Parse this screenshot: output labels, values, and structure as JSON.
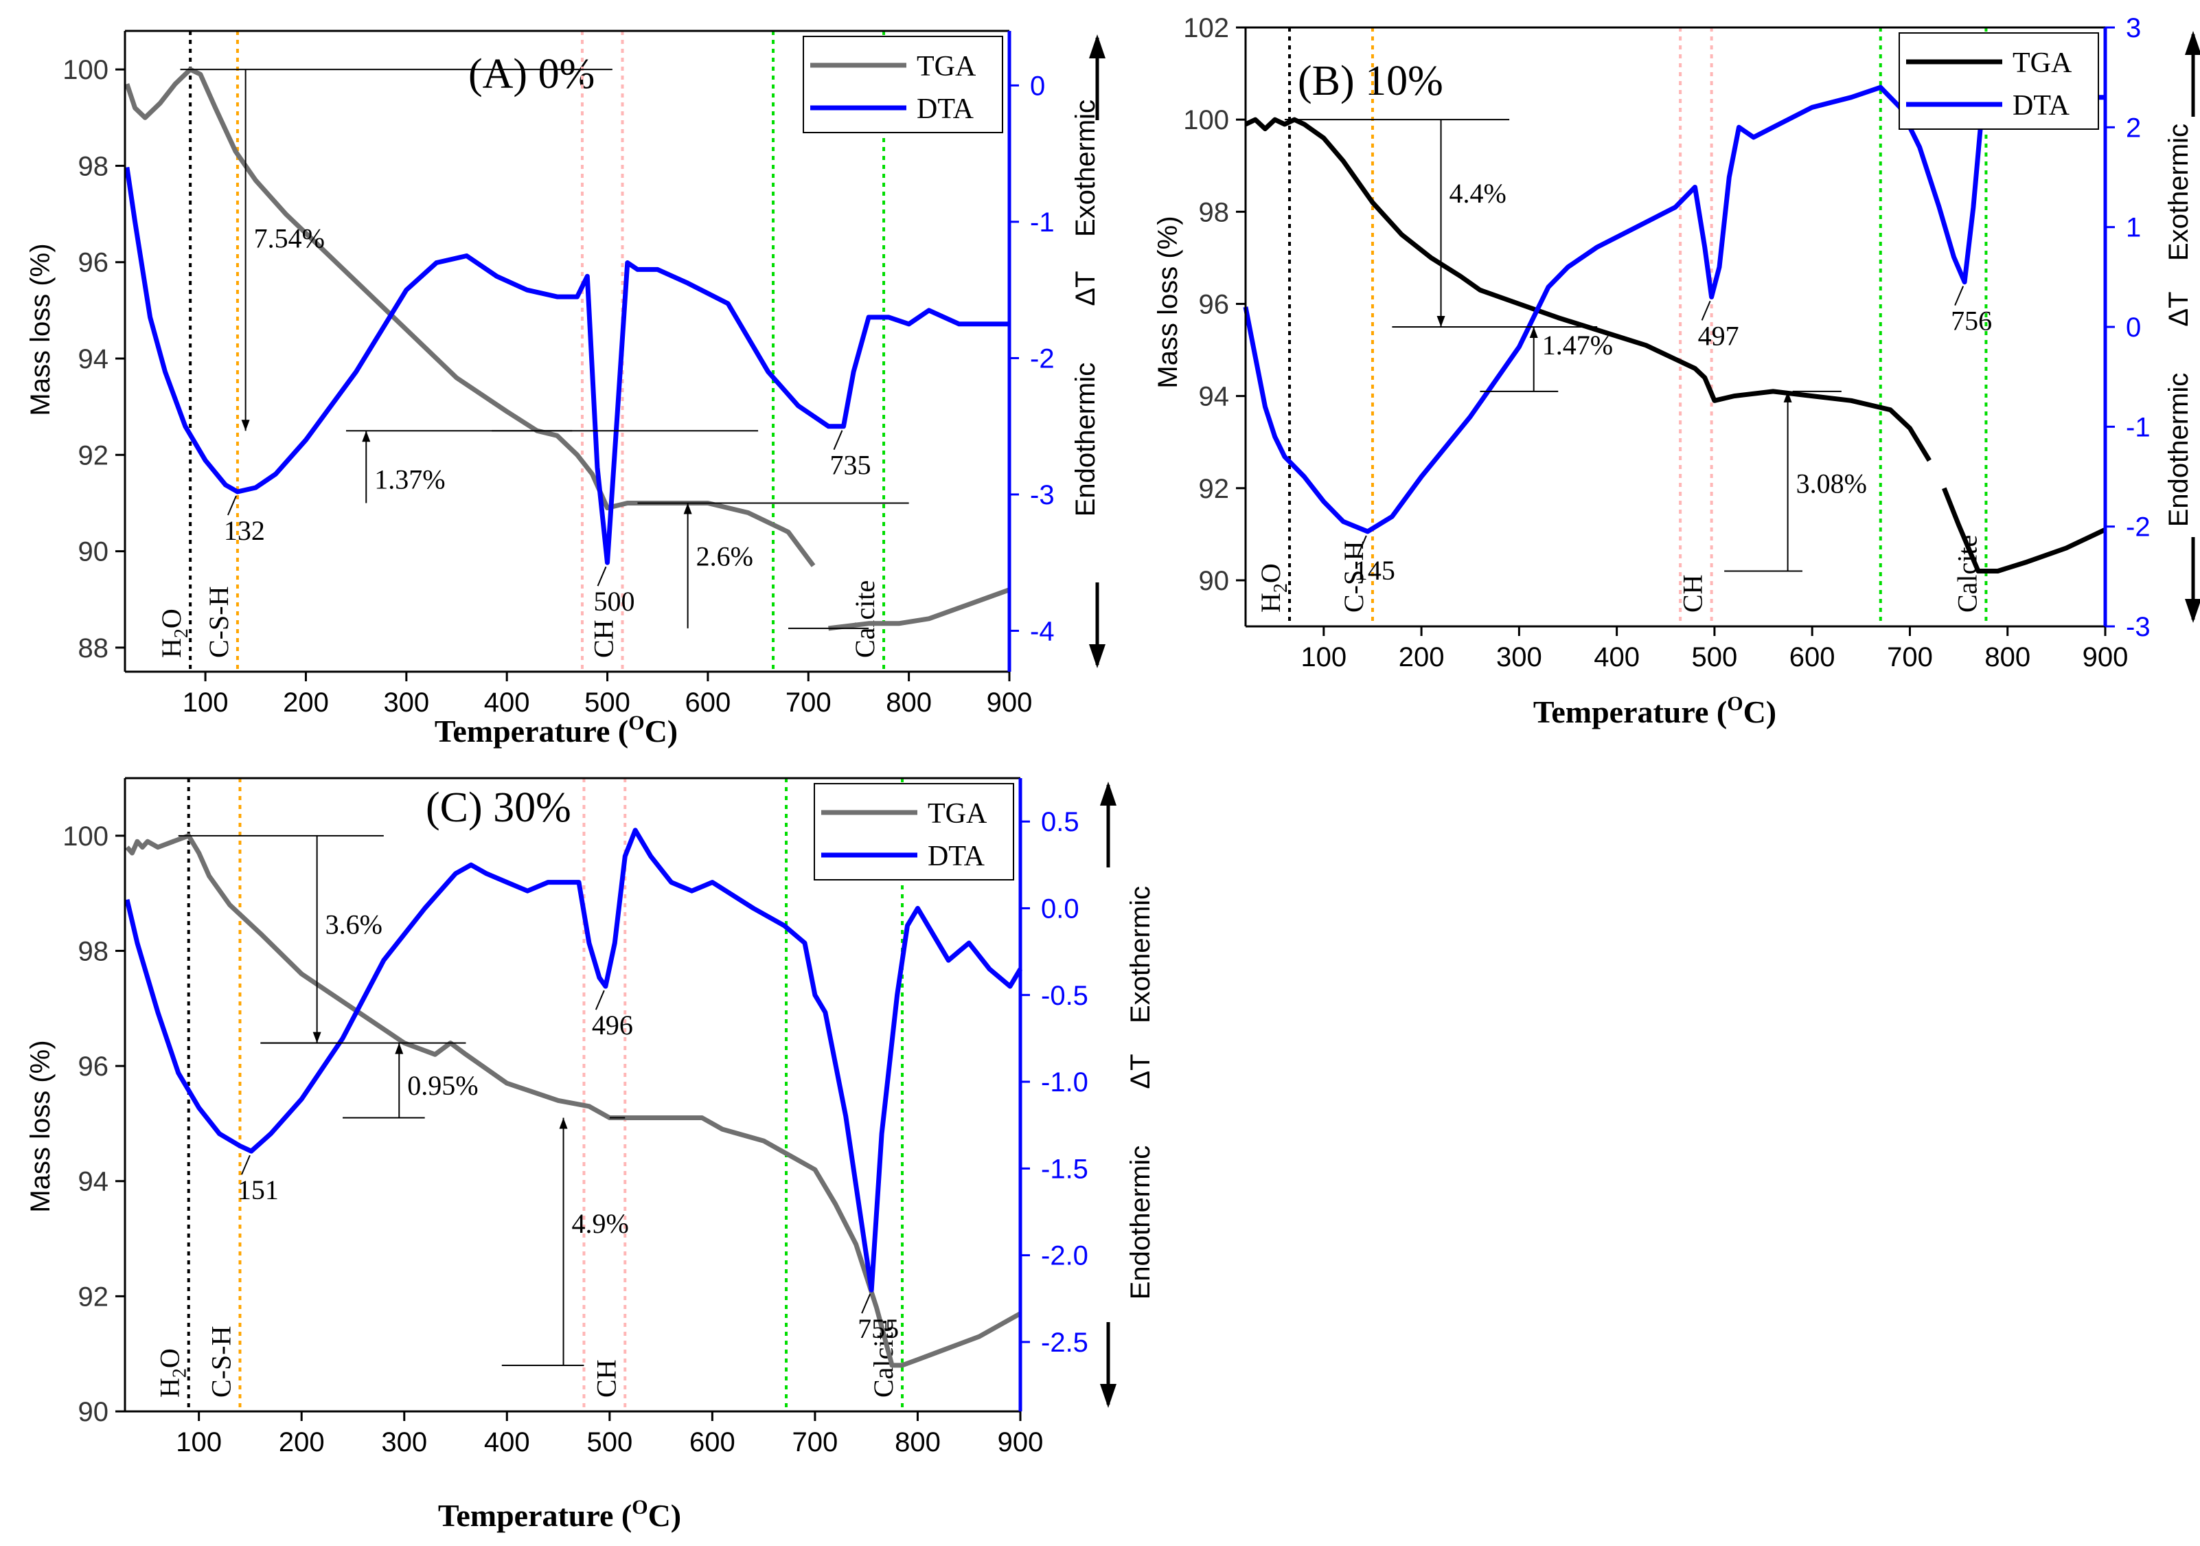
{
  "figure": {
    "panels": [
      {
        "id": "A",
        "title": "(A) 0%",
        "x_label_main": "Temperature (",
        "x_label_sup": "O",
        "x_label_end": "C)",
        "y_left_label": "Mass loss (%)",
        "y_right_label_endo": "Endothermic",
        "y_right_label_delta": "ΔT",
        "y_right_label_exo": "Exothermic",
        "legend": [
          "TGA",
          "DTA"
        ]
      },
      {
        "id": "B",
        "title": "(B) 10%",
        "x_label_main": "Temperature (",
        "x_label_sup": "O",
        "x_label_end": "C)",
        "y_left_label": "Mass loss (%)",
        "y_right_label_endo": "Endothermic",
        "y_right_label_delta": "ΔT",
        "y_right_label_exo": "Exothermic",
        "legend": [
          "TGA",
          "DTA"
        ]
      },
      {
        "id": "C",
        "title": "(C) 30%",
        "x_label_main": "Temperature (",
        "x_label_sup": "O",
        "x_label_end": "C)",
        "y_left_label": "Mass loss (%)",
        "y_right_label_endo": "Endothermic",
        "y_right_label_delta": "ΔT",
        "y_right_label_exo": "Exothermic",
        "legend": [
          "TGA",
          "DTA"
        ]
      }
    ]
  },
  "chart_data": [
    {
      "type": "line",
      "title": "(A) 0%",
      "xlabel": "Temperature (OC)",
      "ylabel": "Mass loss (%)",
      "y2label": "Endothermic ΔT Exothermic",
      "xlim": [
        20,
        900
      ],
      "ylim": [
        87.5,
        100.8
      ],
      "y2lim": [
        -4.3,
        0.4
      ],
      "xticks": [
        100,
        200,
        300,
        400,
        500,
        600,
        700,
        800,
        900
      ],
      "yticks": [
        88,
        90,
        92,
        94,
        96,
        98,
        100
      ],
      "y2ticks": [
        -4,
        -3,
        -2,
        -1,
        0
      ],
      "legend_position": "top-right",
      "colors": {
        "TGA": "#707070",
        "DTA": "#0000ff"
      },
      "series": [
        {
          "name": "TGA",
          "axis": "left",
          "segments": [
            {
              "x": [
                22,
                30,
                40,
                55,
                70,
                85,
                95,
                110,
                130,
                150,
                180,
                210,
                250,
                300,
                350,
                400,
                430,
                450,
                470,
                485,
                500,
                520,
                560,
                600,
                640,
                680,
                705
              ],
              "y": [
                99.7,
                99.2,
                99.0,
                99.3,
                99.7,
                100.0,
                99.9,
                99.2,
                98.3,
                97.7,
                97.0,
                96.4,
                95.6,
                94.6,
                93.6,
                92.9,
                92.5,
                92.4,
                92.0,
                91.6,
                90.9,
                91.0,
                91.0,
                91.0,
                90.8,
                90.4,
                89.7
              ]
            },
            {
              "x": [
                720,
                760,
                790,
                820,
                860,
                900
              ],
              "y": [
                88.4,
                88.5,
                88.5,
                88.6,
                88.9,
                89.2
              ]
            }
          ]
        },
        {
          "name": "DTA",
          "axis": "right",
          "x": [
            22,
            30,
            45,
            60,
            80,
            100,
            120,
            132,
            150,
            170,
            200,
            250,
            300,
            330,
            360,
            390,
            420,
            450,
            470,
            480,
            490,
            500,
            510,
            520,
            530,
            550,
            580,
            620,
            660,
            690,
            720,
            735,
            745,
            760,
            780,
            800,
            820,
            850,
            900
          ],
          "y": [
            -0.6,
            -1.0,
            -1.7,
            -2.1,
            -2.5,
            -2.75,
            -2.93,
            -2.98,
            -2.95,
            -2.85,
            -2.6,
            -2.1,
            -1.5,
            -1.3,
            -1.25,
            -1.4,
            -1.5,
            -1.55,
            -1.55,
            -1.4,
            -2.8,
            -3.5,
            -2.4,
            -1.3,
            -1.35,
            -1.35,
            -1.45,
            -1.6,
            -2.1,
            -2.35,
            -2.5,
            -2.5,
            -2.1,
            -1.7,
            -1.7,
            -1.75,
            -1.65,
            -1.75,
            -1.75
          ]
        }
      ],
      "vlines": [
        {
          "x": 85,
          "color": "#000000",
          "label": "H2O"
        },
        {
          "x": 132,
          "color": "#ffa500",
          "label": "C-S-H"
        },
        {
          "x": 475,
          "color": "#ffb6b6",
          "label": ""
        },
        {
          "x": 515,
          "color": "#ffb6b6",
          "label": "CH"
        },
        {
          "x": 665,
          "color": "#00dd00",
          "label": ""
        },
        {
          "x": 775,
          "color": "#00dd00",
          "label": "Calcite"
        }
      ],
      "annotations": [
        "132",
        "500",
        "735",
        "7.54%",
        "1.37%",
        "2.6%"
      ]
    },
    {
      "type": "line",
      "title": "(B) 10%",
      "xlabel": "Temperature (OC)",
      "ylabel": "Mass loss (%)",
      "y2label": "Endothermic ΔT Exothermic",
      "xlim": [
        20,
        900
      ],
      "ylim": [
        89,
        102
      ],
      "y2lim": [
        -3,
        3
      ],
      "xticks": [
        100,
        200,
        300,
        400,
        500,
        600,
        700,
        800,
        900
      ],
      "yticks": [
        90,
        92,
        94,
        96,
        98,
        100,
        102
      ],
      "y2ticks": [
        -3,
        -2,
        -1,
        0,
        1,
        2,
        3
      ],
      "legend_position": "top-right",
      "colors": {
        "TGA": "#000000",
        "DTA": "#0000ff"
      },
      "series": [
        {
          "name": "TGA",
          "axis": "left",
          "segments": [
            {
              "x": [
                20,
                30,
                40,
                50,
                60,
                70,
                80,
                100,
                120,
                150,
                180,
                210,
                240,
                260,
                300,
                340,
                370,
                400,
                430,
                460,
                480,
                490,
                500,
                520,
                560,
                600,
                640,
                680,
                700,
                720
              ],
              "y": [
                99.9,
                100.0,
                99.8,
                100.0,
                99.9,
                100.0,
                99.9,
                99.6,
                99.1,
                98.2,
                97.5,
                97.0,
                96.6,
                96.3,
                96.0,
                95.7,
                95.5,
                95.3,
                95.1,
                94.8,
                94.6,
                94.4,
                93.9,
                94.0,
                94.1,
                94.0,
                93.9,
                93.7,
                93.3,
                92.6
              ]
            },
            {
              "x": [
                735,
                750,
                770,
                790,
                820,
                860,
                900
              ],
              "y": [
                92.0,
                91.2,
                90.2,
                90.2,
                90.4,
                90.7,
                91.1
              ]
            }
          ]
        },
        {
          "name": "DTA",
          "axis": "right",
          "x": [
            20,
            30,
            40,
            50,
            60,
            80,
            100,
            120,
            145,
            170,
            200,
            250,
            300,
            330,
            350,
            380,
            420,
            460,
            470,
            480,
            490,
            497,
            505,
            515,
            525,
            540,
            560,
            600,
            640,
            670,
            690,
            710,
            730,
            745,
            756,
            765,
            775,
            790,
            810,
            830,
            850,
            870,
            890,
            900
          ],
          "y": [
            0.2,
            -0.3,
            -0.8,
            -1.1,
            -1.3,
            -1.5,
            -1.75,
            -1.95,
            -2.05,
            -1.9,
            -1.5,
            -0.9,
            -0.2,
            0.4,
            0.6,
            0.8,
            1.0,
            1.2,
            1.3,
            1.4,
            0.8,
            0.3,
            0.6,
            1.5,
            2.0,
            1.9,
            2.0,
            2.2,
            2.3,
            2.4,
            2.2,
            1.8,
            1.2,
            0.7,
            0.45,
            1.2,
            2.3,
            2.4,
            2.55,
            2.4,
            2.3,
            2.4,
            2.3,
            2.3
          ]
        }
      ],
      "vlines": [
        {
          "x": 65,
          "color": "#000000",
          "label": "H2O"
        },
        {
          "x": 150,
          "color": "#ffa500",
          "label": "C-S-H"
        },
        {
          "x": 465,
          "color": "#ffb6b6",
          "label": ""
        },
        {
          "x": 497,
          "color": "#ffb6b6",
          "label": "CH"
        },
        {
          "x": 670,
          "color": "#00dd00",
          "label": ""
        },
        {
          "x": 778,
          "color": "#00dd00",
          "label": "Calcite"
        }
      ],
      "annotations": [
        "145",
        "497",
        "756",
        "4.4%",
        "1.47%",
        "3.08%"
      ]
    },
    {
      "type": "line",
      "title": "(C) 30%",
      "xlabel": "Temperature (OC)",
      "ylabel": "Mass loss (%)",
      "y2label": "Endothermic ΔT Exothermic",
      "xlim": [
        28,
        900
      ],
      "ylim": [
        90,
        101
      ],
      "y2lim": [
        -2.9,
        0.75
      ],
      "xticks": [
        100,
        200,
        300,
        400,
        500,
        600,
        700,
        800,
        900
      ],
      "yticks": [
        90,
        92,
        94,
        96,
        98,
        100
      ],
      "y2ticks": [
        -2.5,
        -2.0,
        -1.5,
        -1.0,
        -0.5,
        0.0,
        0.5
      ],
      "legend_position": "top-right",
      "colors": {
        "TGA": "#707070",
        "DTA": "#0000ff"
      },
      "series": [
        {
          "name": "TGA",
          "axis": "left",
          "x": [
            30,
            35,
            40,
            45,
            50,
            60,
            75,
            90,
            100,
            110,
            130,
            160,
            200,
            250,
            300,
            330,
            345,
            360,
            400,
            450,
            480,
            500,
            550,
            590,
            610,
            650,
            700,
            720,
            740,
            760,
            775,
            785,
            800,
            830,
            860,
            900
          ],
          "y": [
            99.8,
            99.7,
            99.9,
            99.8,
            99.9,
            99.8,
            99.9,
            100.0,
            99.7,
            99.3,
            98.8,
            98.3,
            97.6,
            97.0,
            96.4,
            96.2,
            96.4,
            96.2,
            95.7,
            95.4,
            95.3,
            95.1,
            95.1,
            95.1,
            94.9,
            94.7,
            94.2,
            93.6,
            92.9,
            91.8,
            90.8,
            90.8,
            90.9,
            91.1,
            91.3,
            91.7
          ]
        },
        {
          "name": "DTA",
          "axis": "right",
          "x": [
            30,
            40,
            60,
            80,
            100,
            120,
            140,
            151,
            170,
            200,
            240,
            280,
            320,
            350,
            365,
            380,
            400,
            420,
            440,
            460,
            470,
            480,
            490,
            496,
            505,
            515,
            525,
            540,
            560,
            580,
            600,
            640,
            670,
            690,
            700,
            710,
            730,
            745,
            755,
            765,
            780,
            790,
            800,
            810,
            830,
            850,
            870,
            890,
            900
          ],
          "y": [
            0.05,
            -0.2,
            -0.6,
            -0.95,
            -1.15,
            -1.3,
            -1.37,
            -1.4,
            -1.3,
            -1.1,
            -0.75,
            -0.3,
            0.0,
            0.2,
            0.25,
            0.2,
            0.15,
            0.1,
            0.15,
            0.15,
            0.15,
            -0.2,
            -0.4,
            -0.45,
            -0.2,
            0.3,
            0.45,
            0.3,
            0.15,
            0.1,
            0.15,
            0.0,
            -0.1,
            -0.2,
            -0.5,
            -0.6,
            -1.2,
            -1.8,
            -2.2,
            -1.3,
            -0.5,
            -0.1,
            0.0,
            -0.1,
            -0.3,
            -0.2,
            -0.35,
            -0.45,
            -0.35
          ]
        }
      ],
      "vlines": [
        {
          "x": 90,
          "color": "#000000",
          "label": "H2O"
        },
        {
          "x": 140,
          "color": "#ffa500",
          "label": "C-S-H"
        },
        {
          "x": 475,
          "color": "#ffb6b6",
          "label": ""
        },
        {
          "x": 515,
          "color": "#ffb6b6",
          "label": "CH"
        },
        {
          "x": 672,
          "color": "#00dd00",
          "label": ""
        },
        {
          "x": 785,
          "color": "#00dd00",
          "label": "Calcite"
        }
      ],
      "annotations": [
        "151",
        "496",
        "755",
        "3.6%",
        "0.95%",
        "4.9%"
      ]
    }
  ]
}
